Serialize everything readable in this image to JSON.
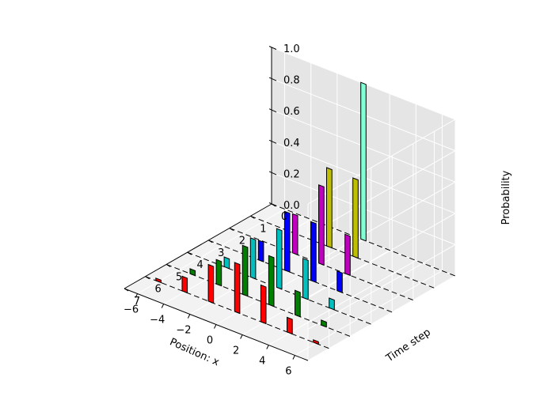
{
  "chart_data": {
    "type": "bar3d",
    "title": "",
    "xlabel": "Position: x",
    "ylabel": "Time step",
    "zlabel": "Probability",
    "x_ticks": [
      "−6",
      "−4",
      "−2",
      "0",
      "2",
      "4",
      "6"
    ],
    "y_ticks": [
      "0",
      "1",
      "2",
      "3",
      "4",
      "5",
      "6",
      "7"
    ],
    "z_ticks": [
      "0.0",
      "0.2",
      "0.4",
      "0.6",
      "0.8",
      "1.0"
    ],
    "xlim": [
      -7,
      7
    ],
    "ylim": [
      0,
      7
    ],
    "zlim": [
      0,
      1
    ],
    "grid": true,
    "series": [
      {
        "time_step": 0,
        "color": "#7fffd4",
        "bars": [
          {
            "x": 0,
            "p": 1.0
          }
        ]
      },
      {
        "time_step": 1,
        "color": "#bfbf00",
        "bars": [
          {
            "x": -1,
            "p": 0.5
          },
          {
            "x": 1,
            "p": 0.5
          }
        ]
      },
      {
        "time_step": 2,
        "color": "#bf00bf",
        "bars": [
          {
            "x": -2,
            "p": 0.25
          },
          {
            "x": 0,
            "p": 0.5
          },
          {
            "x": 2,
            "p": 0.25
          }
        ]
      },
      {
        "time_step": 3,
        "color": "#0000ff",
        "bars": [
          {
            "x": -3,
            "p": 0.125
          },
          {
            "x": -1,
            "p": 0.375
          },
          {
            "x": 1,
            "p": 0.375
          },
          {
            "x": 3,
            "p": 0.125
          }
        ]
      },
      {
        "time_step": 4,
        "color": "#00bfbf",
        "bars": [
          {
            "x": -4,
            "p": 0.0625
          },
          {
            "x": -2,
            "p": 0.25
          },
          {
            "x": 0,
            "p": 0.375
          },
          {
            "x": 2,
            "p": 0.25
          },
          {
            "x": 4,
            "p": 0.0625
          }
        ]
      },
      {
        "time_step": 5,
        "color": "#008000",
        "bars": [
          {
            "x": -5,
            "p": 0.03125
          },
          {
            "x": -3,
            "p": 0.15625
          },
          {
            "x": -1,
            "p": 0.3125
          },
          {
            "x": 1,
            "p": 0.3125
          },
          {
            "x": 3,
            "p": 0.15625
          },
          {
            "x": 5,
            "p": 0.03125
          }
        ]
      },
      {
        "time_step": 6,
        "color": "#ff0000",
        "bars": [
          {
            "x": -6,
            "p": 0.015625
          },
          {
            "x": -4,
            "p": 0.09375
          },
          {
            "x": -2,
            "p": 0.234375
          },
          {
            "x": 0,
            "p": 0.3125
          },
          {
            "x": 2,
            "p": 0.234375
          },
          {
            "x": 4,
            "p": 0.09375
          },
          {
            "x": 6,
            "p": 0.015625
          }
        ]
      }
    ]
  }
}
